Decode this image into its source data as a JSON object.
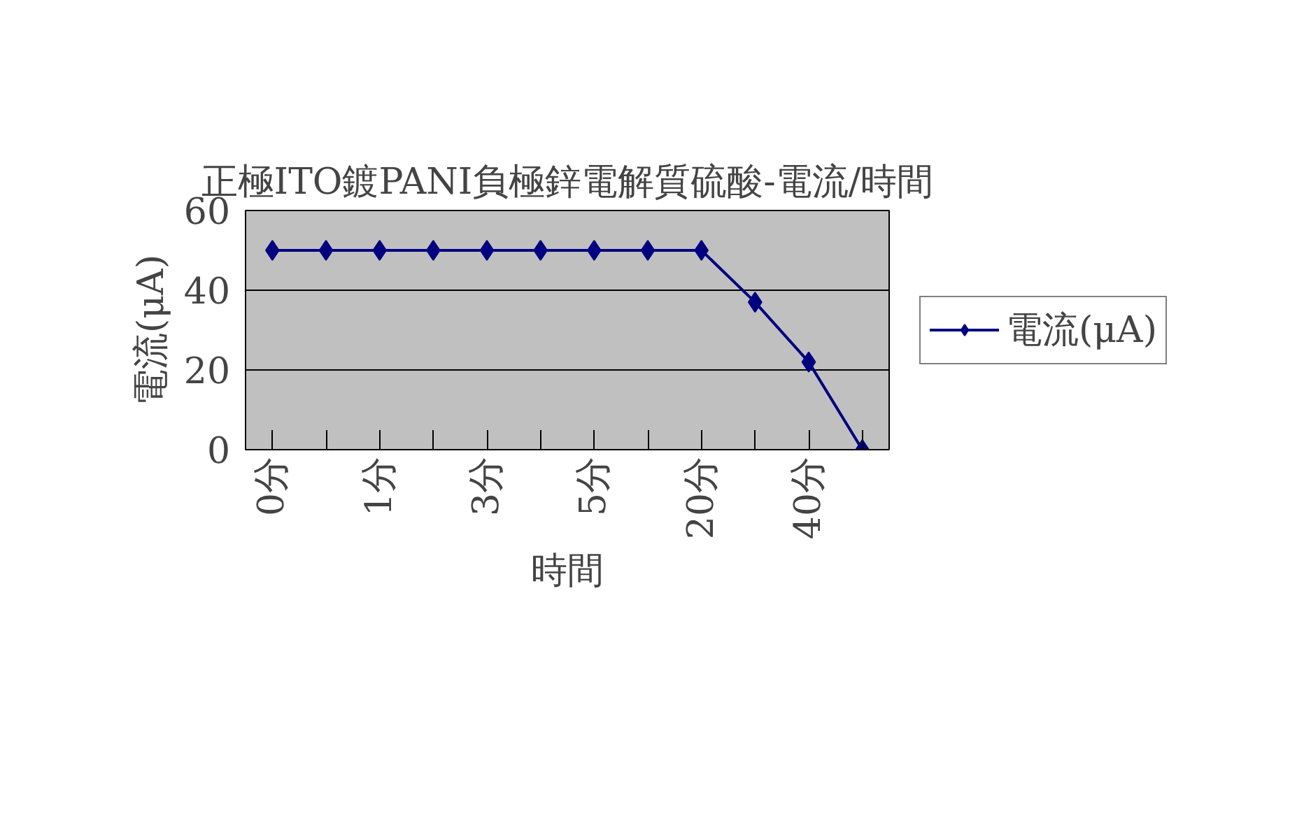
{
  "chart_data": {
    "type": "line",
    "title": "正極ITO鍍PANI負極鋅電解質硫酸-電流/時間",
    "xlabel": "時間",
    "ylabel": "電流(μA)",
    "categories": [
      "0分",
      null,
      "1分",
      null,
      "3分",
      null,
      "5分",
      null,
      "20分",
      null,
      "40分",
      null
    ],
    "series": [
      {
        "name": "電流(μA)",
        "color": "#000080",
        "values": [
          50,
          50,
          50,
          50,
          50,
          50,
          50,
          50,
          50,
          37,
          22,
          0
        ]
      }
    ],
    "ylim": [
      0,
      60
    ],
    "yticks": [
      0,
      20,
      40,
      60
    ],
    "grid": "y",
    "legend": "right",
    "marker": "diamond",
    "line_style": "solid"
  }
}
